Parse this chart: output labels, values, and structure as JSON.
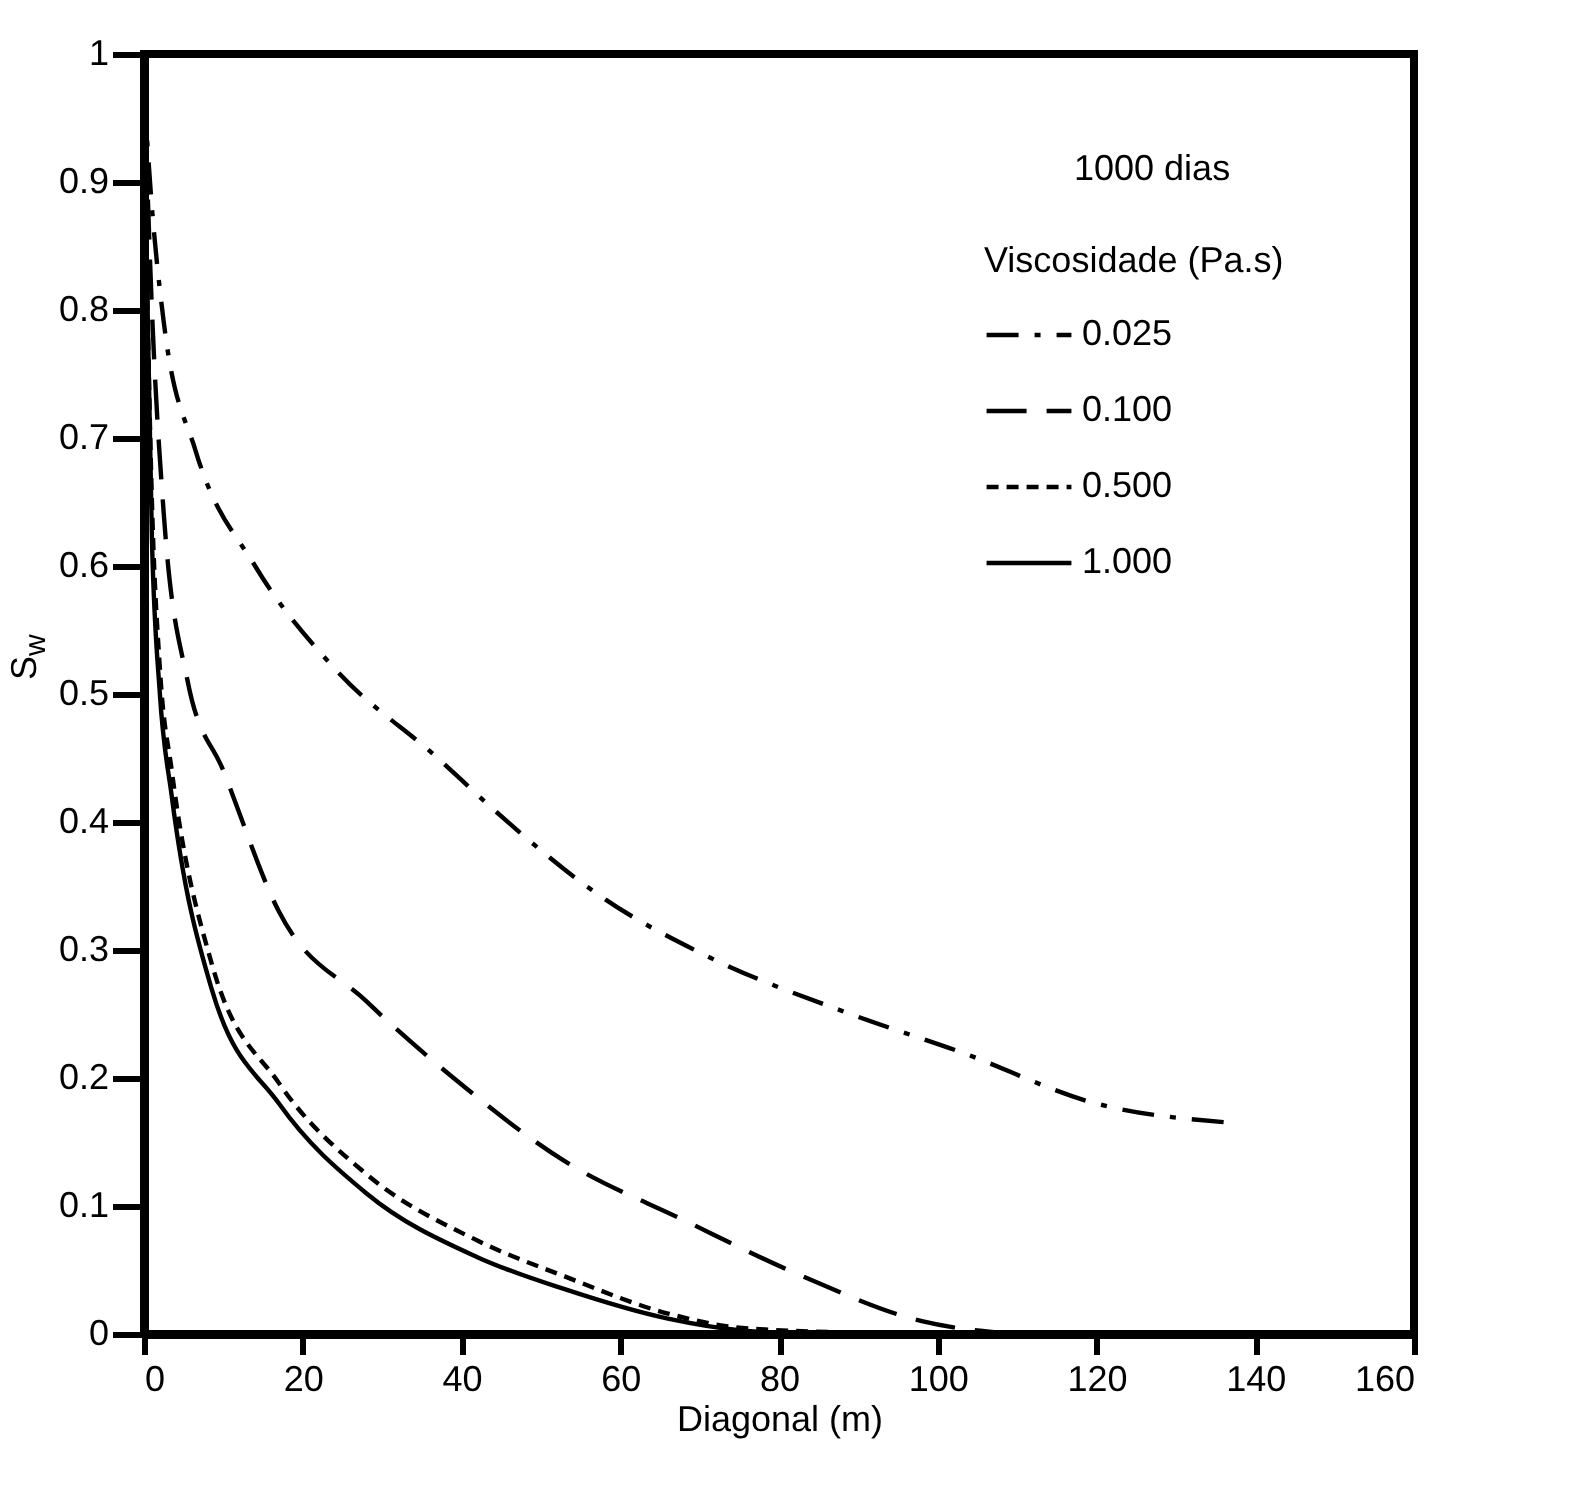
{
  "chart_data": {
    "type": "line",
    "xlabel": "Diagonal (m)",
    "ylabel": "S$_{w}$",
    "legend_title": "Viscosidade (Pa.s)",
    "legend": "top right",
    "annotations": [
      "1000 dias"
    ],
    "xlim": [
      0,
      160
    ],
    "xticks": [
      0,
      20,
      40,
      60,
      80,
      100,
      120,
      140,
      160
    ],
    "ylim": [
      0,
      1
    ],
    "yticks": [
      0,
      0.1,
      0.2,
      0.3,
      0.4,
      0.5,
      0.6,
      0.7,
      0.8,
      0.9,
      1
    ],
    "grid": false,
    "series": [
      {
        "name": "0.025",
        "color": "#000000",
        "line_style": "dashdot",
        "x": [
          0,
          1,
          2.5,
          6.5,
          14,
          24,
          37,
          44,
          58,
          71,
          89,
          103,
          120,
          137
        ],
        "values": [
          0.97,
          0.88,
          0.79,
          0.69,
          0.6,
          0.52,
          0.45,
          0.41,
          0.34,
          0.295,
          0.25,
          0.22,
          0.18,
          0.165
        ]
      },
      {
        "name": "0.100",
        "color": "#000000",
        "line_style": "longdash",
        "x": [
          0,
          1,
          2.5,
          5.5,
          10,
          17,
          28,
          39,
          53,
          68,
          83,
          98,
          110
        ],
        "values": [
          0.98,
          0.8,
          0.64,
          0.51,
          0.44,
          0.33,
          0.26,
          0.2,
          0.135,
          0.089,
          0.045,
          0.01,
          0
        ]
      },
      {
        "name": "0.500",
        "color": "#000000",
        "line_style": "dashed",
        "x": [
          0,
          1,
          2,
          3.5,
          8.5,
          17,
          28,
          42,
          53,
          66,
          75,
          90
        ],
        "values": [
          0.95,
          0.65,
          0.52,
          0.44,
          0.29,
          0.196,
          0.125,
          0.073,
          0.045,
          0.016,
          0.005,
          0.001
        ]
      },
      {
        "name": "1.000",
        "color": "#000000",
        "line_style": "solid",
        "x": [
          0,
          1,
          2,
          3.5,
          8.5,
          17,
          28,
          42,
          53,
          66,
          75,
          85
        ],
        "values": [
          0.95,
          0.62,
          0.5,
          0.42,
          0.27,
          0.18,
          0.11,
          0.06,
          0.035,
          0.012,
          0.003,
          0
        ]
      }
    ]
  }
}
